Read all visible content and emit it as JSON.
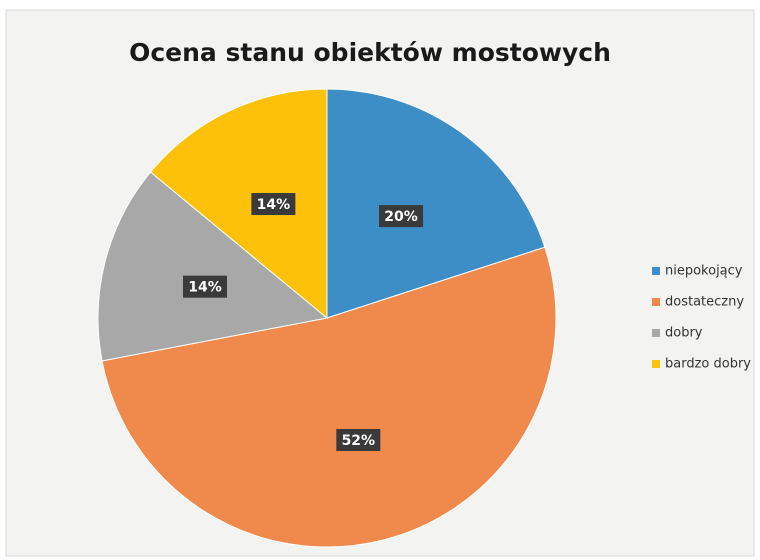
{
  "chart_data": {
    "type": "pie",
    "title": "Ocena stanu obiektów mostowych",
    "categories": [
      "niepokojący",
      "dostateczny",
      "dobry",
      "bardzo dobry"
    ],
    "values": [
      20,
      52,
      14,
      14
    ],
    "value_labels": [
      "20%",
      "52%",
      "14%",
      "14%"
    ],
    "colors": [
      "#3d8dc6",
      "#ef8a4c",
      "#a8a8a8",
      "#fdc10a"
    ],
    "legend": "right"
  }
}
